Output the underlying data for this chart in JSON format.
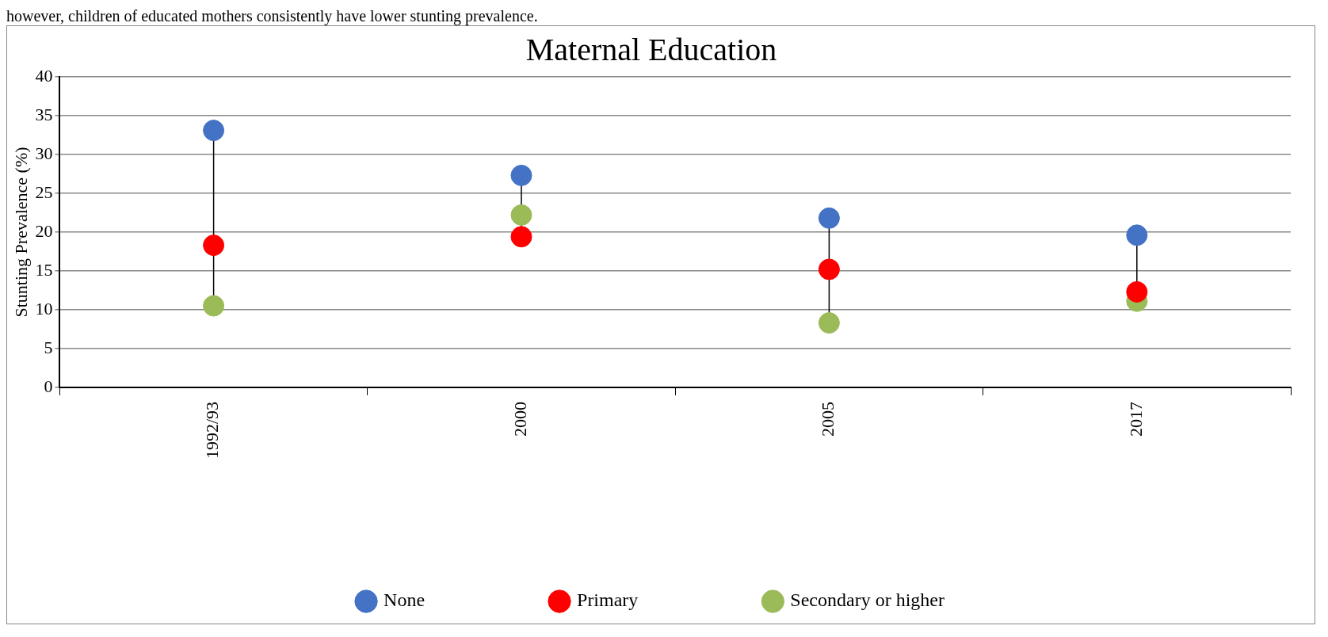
{
  "chart_data": {
    "type": "scatter",
    "title": "Maternal Education",
    "ylabel": "Stunting Prevalence (%)",
    "annotations": [
      "however, children of educated mothers consistently have lower stunting prevalence."
    ],
    "categories": [
      "1992/93",
      "2000",
      "2005",
      "2017"
    ],
    "series": [
      {
        "name": "None",
        "color": "#4472c4",
        "values": [
          33.1,
          27.3,
          21.8,
          19.6
        ]
      },
      {
        "name": "Primary",
        "color": "#ff0000",
        "values": [
          18.3,
          19.4,
          15.2,
          12.3
        ]
      },
      {
        "name": "Secondary or higher",
        "color": "#9bbb59",
        "values": [
          10.5,
          22.2,
          8.3,
          11.1
        ]
      }
    ],
    "ylim": [
      0,
      40
    ],
    "yticks": [
      0,
      5,
      10,
      15,
      20,
      25,
      30,
      35,
      40
    ],
    "grid": "y",
    "legend": "bottom",
    "marker": "circle"
  }
}
